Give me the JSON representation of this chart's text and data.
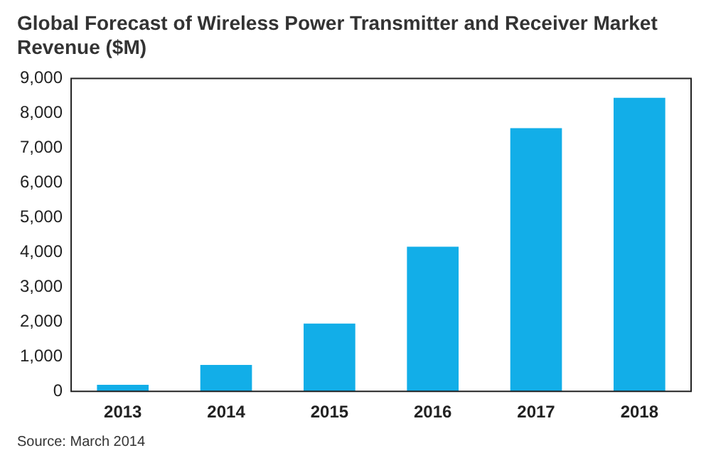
{
  "chart_data": {
    "type": "bar",
    "title": "Global Forecast of Wireless Power Transmitter and Receiver Market Revenue ($M)",
    "categories": [
      "2013",
      "2014",
      "2015",
      "2016",
      "2017",
      "2018"
    ],
    "values": [
      190,
      760,
      1950,
      4160,
      7570,
      8440
    ],
    "color": "#12aee8",
    "ylim": [
      0,
      9000
    ],
    "yticks": [
      {
        "value": 0,
        "label": "0"
      },
      {
        "value": 1000,
        "label": "1,000"
      },
      {
        "value": 2000,
        "label": "2,000"
      },
      {
        "value": 3000,
        "label": "3,000"
      },
      {
        "value": 4000,
        "label": "4,000"
      },
      {
        "value": 5000,
        "label": "5,000"
      },
      {
        "value": 6000,
        "label": "6,000"
      },
      {
        "value": 7000,
        "label": "7,000"
      },
      {
        "value": 8000,
        "label": "8,000"
      },
      {
        "value": 9000,
        "label": "9,000"
      }
    ],
    "grid": false,
    "annotations": [
      "Source: March 2014"
    ]
  }
}
